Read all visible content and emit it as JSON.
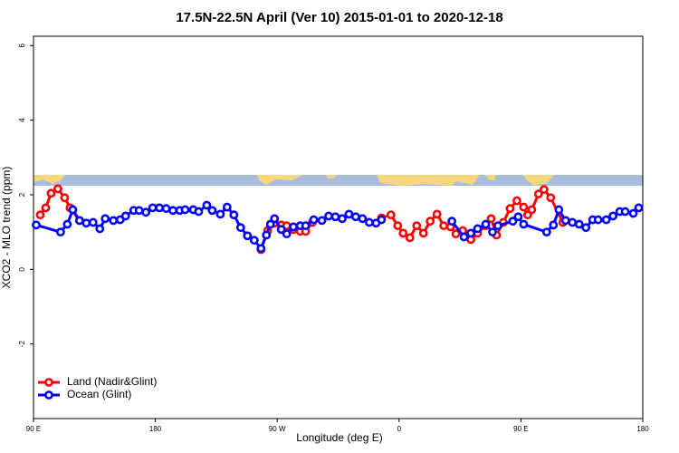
{
  "chart_data": {
    "type": "line",
    "title": "17.5N-22.5N April (Ver 10)   2015-01-01 to 2020-12-18",
    "x_label": "Longitude (deg E)",
    "y_label": "XCO2 - MLO trend (ppm)",
    "xlim": [
      90,
      540
    ],
    "xticks": [
      {
        "value": 90,
        "label": "90 E"
      },
      {
        "value": 180,
        "label": "180"
      },
      {
        "value": 270,
        "label": "90 W"
      },
      {
        "value": 360,
        "label": "0"
      },
      {
        "value": 450,
        "label": "90 E"
      },
      {
        "value": 540,
        "label": "180"
      }
    ],
    "ylim": [
      -4,
      6.25
    ],
    "yticks": [
      -2,
      0,
      2,
      4,
      6
    ],
    "legend": "bottom-left",
    "series": [
      {
        "name": "Land (Nadir&Glint)",
        "color": "#ff0000",
        "x": [
          95,
          99,
          103,
          108,
          113,
          117,
          124,
          null,
          258,
          263,
          268,
          273,
          277,
          282,
          287,
          291,
          296,
          null,
          347,
          354,
          359,
          363,
          368,
          373,
          378,
          383,
          388,
          393,
          398,
          402,
          407,
          413,
          418,
          424,
          428,
          432,
          437,
          442,
          447,
          452,
          455,
          458,
          463,
          467,
          472,
          481
        ],
        "values": [
          1.46,
          1.65,
          2.04,
          2.16,
          1.92,
          1.65,
          1.31,
          null,
          0.53,
          1.04,
          1.24,
          1.19,
          1.17,
          1.07,
          1.02,
          1.02,
          1.26,
          null,
          1.38,
          1.46,
          1.17,
          0.97,
          0.85,
          1.17,
          0.97,
          1.29,
          1.48,
          1.17,
          1.14,
          0.95,
          1.04,
          0.8,
          0.97,
          1.17,
          1.36,
          0.92,
          1.26,
          1.63,
          1.84,
          1.67,
          1.46,
          1.6,
          2.02,
          2.14,
          1.92,
          1.26
        ]
      },
      {
        "name": "Ocean (Glint)",
        "color": "#0000ff",
        "x": [
          92,
          110,
          115,
          119,
          124,
          129,
          134,
          139,
          143,
          149,
          154,
          158,
          164,
          168,
          173,
          178,
          183,
          188,
          193,
          198,
          202,
          208,
          212,
          218,
          222,
          228,
          233,
          238,
          243,
          248,
          253,
          258,
          262,
          265,
          268,
          273,
          277,
          282,
          287,
          291,
          297,
          303,
          308,
          313,
          318,
          323,
          328,
          333,
          338,
          343,
          347,
          null,
          399,
          408,
          413,
          418,
          424,
          429,
          433,
          444,
          448,
          452,
          469,
          474,
          478,
          483,
          488,
          493,
          498,
          503,
          507,
          513,
          518,
          523,
          527,
          533,
          537
        ],
        "values": [
          1.19,
          1.0,
          1.21,
          1.6,
          1.31,
          1.24,
          1.26,
          1.09,
          1.36,
          1.31,
          1.33,
          1.43,
          1.58,
          1.58,
          1.53,
          1.65,
          1.65,
          1.63,
          1.58,
          1.58,
          1.6,
          1.6,
          1.55,
          1.72,
          1.58,
          1.48,
          1.67,
          1.46,
          1.12,
          0.9,
          0.78,
          0.56,
          0.92,
          1.21,
          1.36,
          1.07,
          0.95,
          1.14,
          1.17,
          1.17,
          1.33,
          1.31,
          1.43,
          1.41,
          1.36,
          1.48,
          1.41,
          1.36,
          1.26,
          1.24,
          1.33,
          null,
          1.29,
          0.87,
          0.97,
          1.09,
          1.21,
          1.0,
          1.17,
          1.29,
          1.41,
          1.21,
          1.0,
          1.19,
          1.6,
          1.31,
          1.26,
          1.21,
          1.12,
          1.33,
          1.33,
          1.33,
          1.43,
          1.55,
          1.55,
          1.5,
          1.65
        ]
      }
    ]
  }
}
